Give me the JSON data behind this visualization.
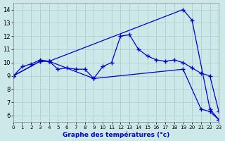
{
  "xlabel": "Graphe des températures (°c)",
  "background_color": "#cde8e8",
  "line_color": "#0000cc",
  "grid_color": "#aacccc",
  "xlim": [
    0,
    23
  ],
  "ylim": [
    5.5,
    14.5
  ],
  "xticks": [
    0,
    1,
    2,
    3,
    4,
    5,
    6,
    7,
    8,
    9,
    10,
    11,
    12,
    13,
    14,
    15,
    16,
    17,
    18,
    19,
    20,
    21,
    22,
    23
  ],
  "yticks": [
    6,
    7,
    8,
    9,
    10,
    11,
    12,
    13,
    14
  ],
  "series": [
    {
      "x": [
        0,
        3,
        4,
        19,
        20,
        22,
        23
      ],
      "y": [
        9.0,
        10.1,
        10.1,
        14.0,
        13.2,
        6.5,
        5.7
      ]
    },
    {
      "x": [
        0,
        1,
        2,
        3,
        4,
        5,
        6,
        7,
        8,
        9,
        10,
        11,
        12,
        13,
        14,
        15,
        16,
        17,
        18,
        19,
        20,
        21,
        22,
        23
      ],
      "y": [
        9.0,
        9.7,
        9.9,
        10.2,
        10.1,
        9.5,
        9.6,
        9.5,
        9.5,
        8.8,
        9.7,
        10.0,
        12.0,
        12.1,
        11.0,
        10.5,
        10.2,
        10.1,
        10.2,
        10.0,
        9.6,
        9.2,
        9.0,
        6.3
      ]
    },
    {
      "x": [
        0,
        3,
        4,
        9,
        19,
        21,
        22,
        23
      ],
      "y": [
        9.0,
        10.1,
        10.1,
        8.8,
        9.5,
        6.5,
        6.3,
        5.7
      ]
    }
  ]
}
